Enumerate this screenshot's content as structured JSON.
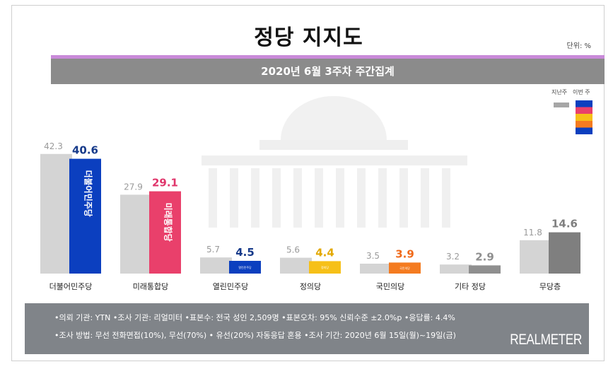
{
  "title": "정당 지지도",
  "unit": "단위: %",
  "subtitle": "2020년 6월 3주차 주간집계",
  "legend": {
    "previous_label": "지난주",
    "current_label": "이번 주",
    "previous_color": "#a6a6a6",
    "current_colors": [
      "#0b3fbf",
      "#e9406b",
      "#f6c018",
      "#f47b20",
      "#0b3fbf"
    ]
  },
  "chart_data": {
    "type": "bar",
    "title": "정당 지지도",
    "categories": [
      "더불어민주당",
      "미래통합당",
      "열린민주당",
      "정의당",
      "국민의당",
      "기타 정당",
      "무당층"
    ],
    "series": [
      {
        "name": "지난주",
        "values": [
          42.3,
          27.9,
          5.7,
          5.6,
          3.5,
          3.2,
          11.8
        ]
      },
      {
        "name": "이번 주",
        "values": [
          40.6,
          29.1,
          4.5,
          4.4,
          3.9,
          2.9,
          14.6
        ]
      }
    ],
    "previous_labels": [
      "42.3",
      "27.9",
      "5.7",
      "5.6",
      "3.5",
      "3.2",
      "11.8"
    ],
    "current_labels": [
      "40.6",
      "29.1",
      "4.5",
      "4.4",
      "3.9",
      "2.9",
      "14.6"
    ],
    "current_colors": [
      "#0b3fbf",
      "#e9406b",
      "#0b3fbf",
      "#f6c018",
      "#f47b20",
      "#8f8f8f",
      "#7f7f7f"
    ],
    "current_label_colors": [
      "#163a8a",
      "#e0356b",
      "#163a8a",
      "#e3a800",
      "#f06a1a",
      "#8f8f8f",
      "#7f7f7f"
    ],
    "previous_color": "#d4d4d4",
    "bar_logos": [
      "더불어민주당",
      "미래통합당",
      "열린민주당",
      "정의당",
      "국민의당",
      "",
      ""
    ],
    "ylim": [
      0,
      50
    ],
    "grid": false,
    "legend_position": "top-right"
  },
  "notes": {
    "line1": "•의뢰 기관: YTN •조사 기관: 리얼미터 •표본수: 전국 성인 2,509명 •표본오차: 95% 신뢰수준 ±2.0%p •응답률: 4.4%",
    "line2": "•조사 방법: 무선 전화면접(10%), 무선(70%) • 유선(20%) 자동응답 혼용 •조사 기간: 2020년 6월 15일(월)~19일(금)",
    "brand": "REALMETER"
  }
}
